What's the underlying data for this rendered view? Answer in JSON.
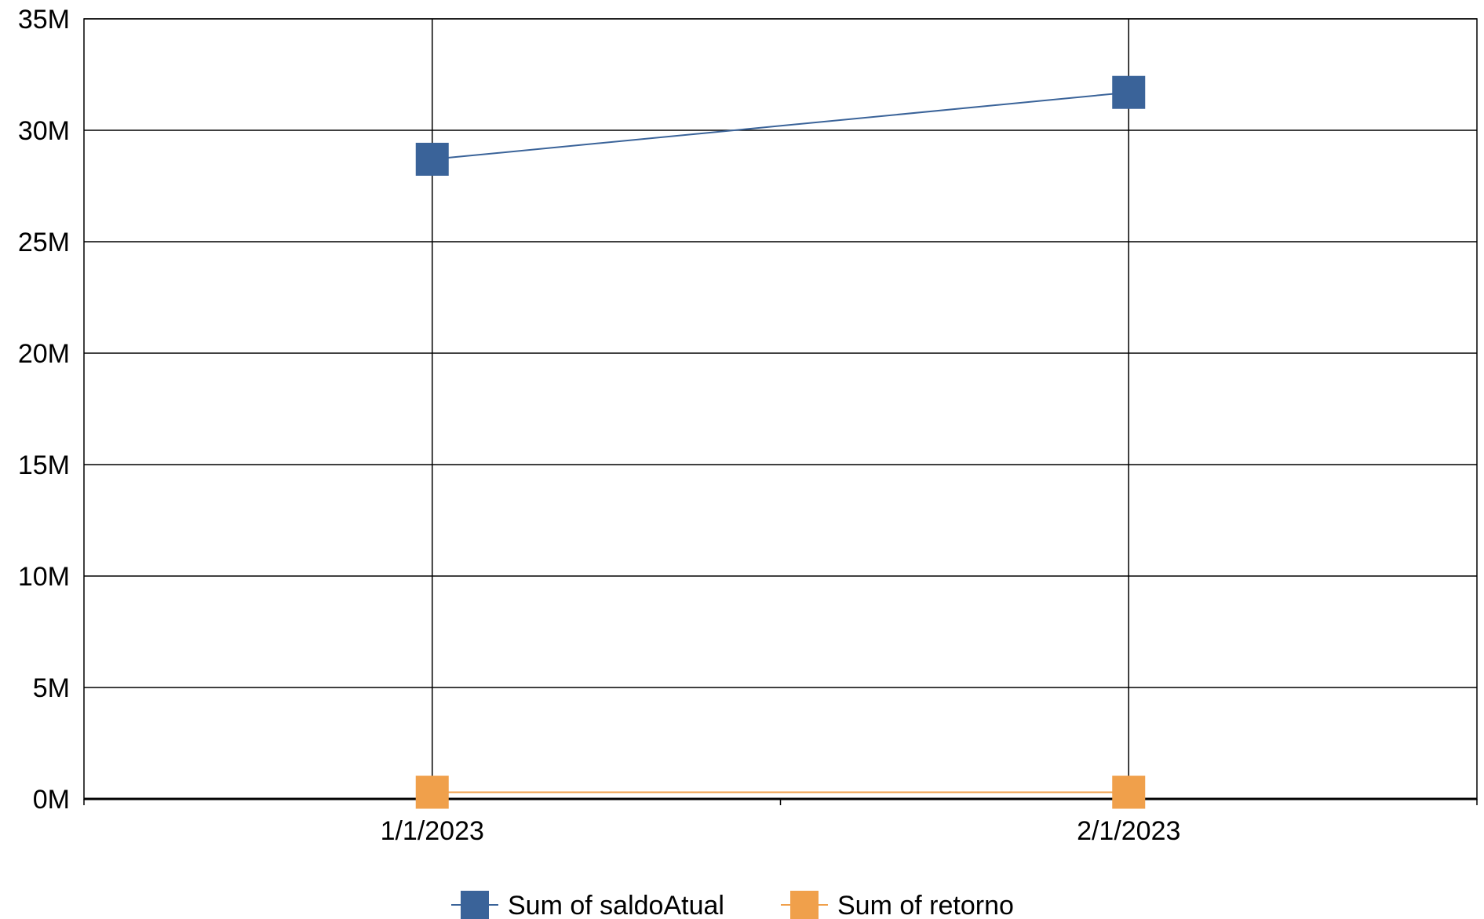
{
  "chart_data": {
    "type": "line",
    "categories": [
      "1/1/2023",
      "2/1/2023"
    ],
    "y_ticks": [
      "0M",
      "5M",
      "10M",
      "15M",
      "20M",
      "25M",
      "30M",
      "35M"
    ],
    "ylim": [
      0,
      35000000
    ],
    "grid": true,
    "legend_position": "bottom",
    "series": [
      {
        "name": "Sum of saldoAtual",
        "color": "#3a6399",
        "values": [
          28700000,
          31700000
        ]
      },
      {
        "name": "Sum of retorno",
        "color": "#f0a04b",
        "values": [
          300000,
          300000
        ]
      }
    ]
  }
}
